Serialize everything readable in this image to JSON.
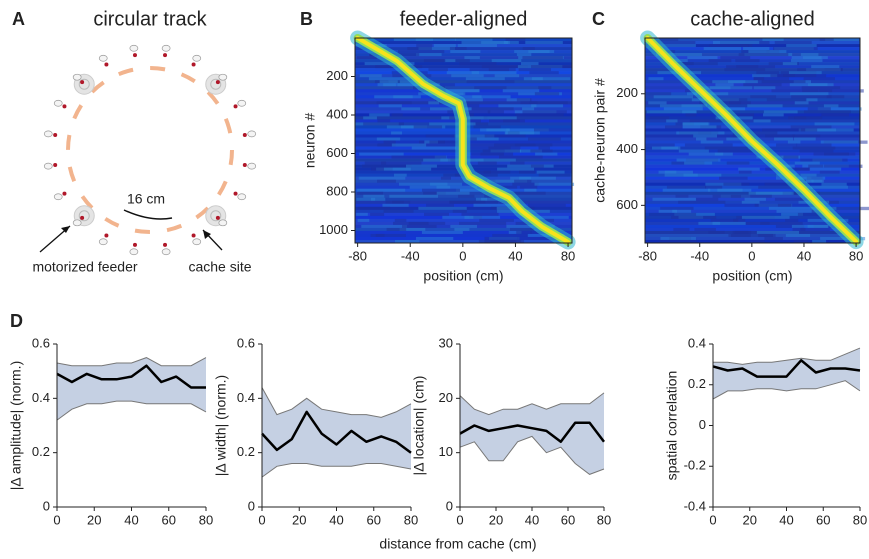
{
  "chart_data": [
    {
      "type": "diagram",
      "panel": "A",
      "title": "circular track",
      "scale_label": "16 cm",
      "labels": [
        "motorized feeder",
        "cache site"
      ]
    },
    {
      "type": "heatmap",
      "panel": "B",
      "title": "feeder-aligned",
      "xlabel": "position (cm)",
      "ylabel": "neuron #",
      "xlim": [
        -82,
        83
      ],
      "ylim": [
        0,
        1065
      ],
      "xticks": [
        -80,
        -40,
        0,
        40,
        80
      ],
      "yticks": [
        200,
        400,
        600,
        800,
        1000
      ],
      "x": [
        -80,
        -65,
        -50,
        -40,
        -30,
        -15,
        -3,
        0,
        0,
        5,
        20,
        35,
        45,
        60,
        80
      ],
      "values": [
        0,
        60,
        120,
        180,
        240,
        300,
        340,
        420,
        660,
        720,
        780,
        830,
        900,
        980,
        1060
      ]
    },
    {
      "type": "heatmap",
      "panel": "C",
      "title": "cache-aligned",
      "xlabel": "position (cm)",
      "ylabel": "cache-neuron pair #",
      "xlim": [
        -82,
        83
      ],
      "ylim": [
        0,
        735
      ],
      "xticks": [
        -80,
        -40,
        0,
        40,
        80
      ],
      "yticks": [
        200,
        400,
        600
      ],
      "x": [
        -80,
        -60,
        -40,
        -20,
        0,
        20,
        40,
        60,
        80
      ],
      "values": [
        0,
        95,
        185,
        275,
        370,
        455,
        545,
        640,
        730
      ]
    },
    {
      "type": "band_line",
      "panel": "D",
      "xlabel": "distance from cache (cm)",
      "ylabel": "|Δ amplitude| (norm.)",
      "color": "#000000",
      "band_color": "#c5d0e3",
      "xlim": [
        0,
        80
      ],
      "ylim": [
        0,
        0.6
      ],
      "xticks": [
        0,
        20,
        40,
        60,
        80
      ],
      "yticks": [
        0,
        0.2,
        0.4,
        0.6
      ],
      "x": [
        0,
        8,
        16,
        24,
        32,
        40,
        48,
        56,
        64,
        72,
        80
      ],
      "values": [
        0.49,
        0.46,
        0.49,
        0.47,
        0.47,
        0.48,
        0.52,
        0.46,
        0.48,
        0.44,
        0.44
      ],
      "upper": [
        0.53,
        0.52,
        0.52,
        0.52,
        0.53,
        0.53,
        0.55,
        0.52,
        0.52,
        0.52,
        0.55
      ],
      "lower": [
        0.32,
        0.36,
        0.38,
        0.38,
        0.39,
        0.39,
        0.38,
        0.38,
        0.38,
        0.38,
        0.35
      ]
    },
    {
      "type": "band_line",
      "ylabel": "|Δ width| (norm.)",
      "color": "#000000",
      "band_color": "#c5d0e3",
      "xlim": [
        0,
        80
      ],
      "ylim": [
        0,
        0.6
      ],
      "xticks": [
        0,
        20,
        40,
        60,
        80
      ],
      "yticks": [
        0,
        0.2,
        0.4,
        0.6
      ],
      "x": [
        0,
        8,
        16,
        24,
        32,
        40,
        48,
        56,
        64,
        72,
        80
      ],
      "values": [
        0.27,
        0.21,
        0.25,
        0.35,
        0.27,
        0.23,
        0.28,
        0.24,
        0.26,
        0.24,
        0.2
      ],
      "upper": [
        0.44,
        0.34,
        0.36,
        0.4,
        0.36,
        0.35,
        0.34,
        0.34,
        0.33,
        0.35,
        0.38
      ],
      "lower": [
        0.11,
        0.15,
        0.16,
        0.16,
        0.15,
        0.15,
        0.15,
        0.16,
        0.16,
        0.15,
        0.14
      ]
    },
    {
      "type": "band_line",
      "ylabel": "|Δ location| (cm)",
      "color": "#000000",
      "band_color": "#c5d0e3",
      "xlim": [
        0,
        80
      ],
      "ylim": [
        0,
        30
      ],
      "xticks": [
        0,
        20,
        40,
        60,
        80
      ],
      "yticks": [
        0,
        10,
        20,
        30
      ],
      "x": [
        0,
        8,
        16,
        24,
        32,
        40,
        48,
        56,
        64,
        72,
        80
      ],
      "values": [
        13.5,
        15,
        14,
        14.5,
        15,
        14.5,
        14,
        12,
        15.5,
        15.5,
        12
      ],
      "upper": [
        20.5,
        18,
        17,
        18,
        18,
        19,
        18,
        19,
        19,
        19,
        21
      ],
      "lower": [
        11,
        12,
        8.5,
        8.5,
        12,
        13,
        10,
        11,
        8,
        6,
        7
      ]
    },
    {
      "type": "band_line",
      "ylabel": "spatial correlation",
      "color": "#000000",
      "band_color": "#c5d0e3",
      "xlim": [
        0,
        80
      ],
      "ylim": [
        -0.4,
        0.4
      ],
      "xticks": [
        0,
        20,
        40,
        60,
        80
      ],
      "yticks": [
        -0.4,
        -0.2,
        0,
        0.2,
        0.4
      ],
      "x": [
        0,
        8,
        16,
        24,
        32,
        40,
        48,
        56,
        64,
        72,
        80
      ],
      "values": [
        0.29,
        0.27,
        0.28,
        0.24,
        0.24,
        0.24,
        0.32,
        0.26,
        0.28,
        0.28,
        0.27
      ],
      "upper": [
        0.31,
        0.31,
        0.3,
        0.31,
        0.31,
        0.32,
        0.33,
        0.32,
        0.32,
        0.35,
        0.38
      ],
      "lower": [
        0.13,
        0.17,
        0.17,
        0.18,
        0.18,
        0.17,
        0.18,
        0.18,
        0.2,
        0.22,
        0.17
      ]
    }
  ]
}
